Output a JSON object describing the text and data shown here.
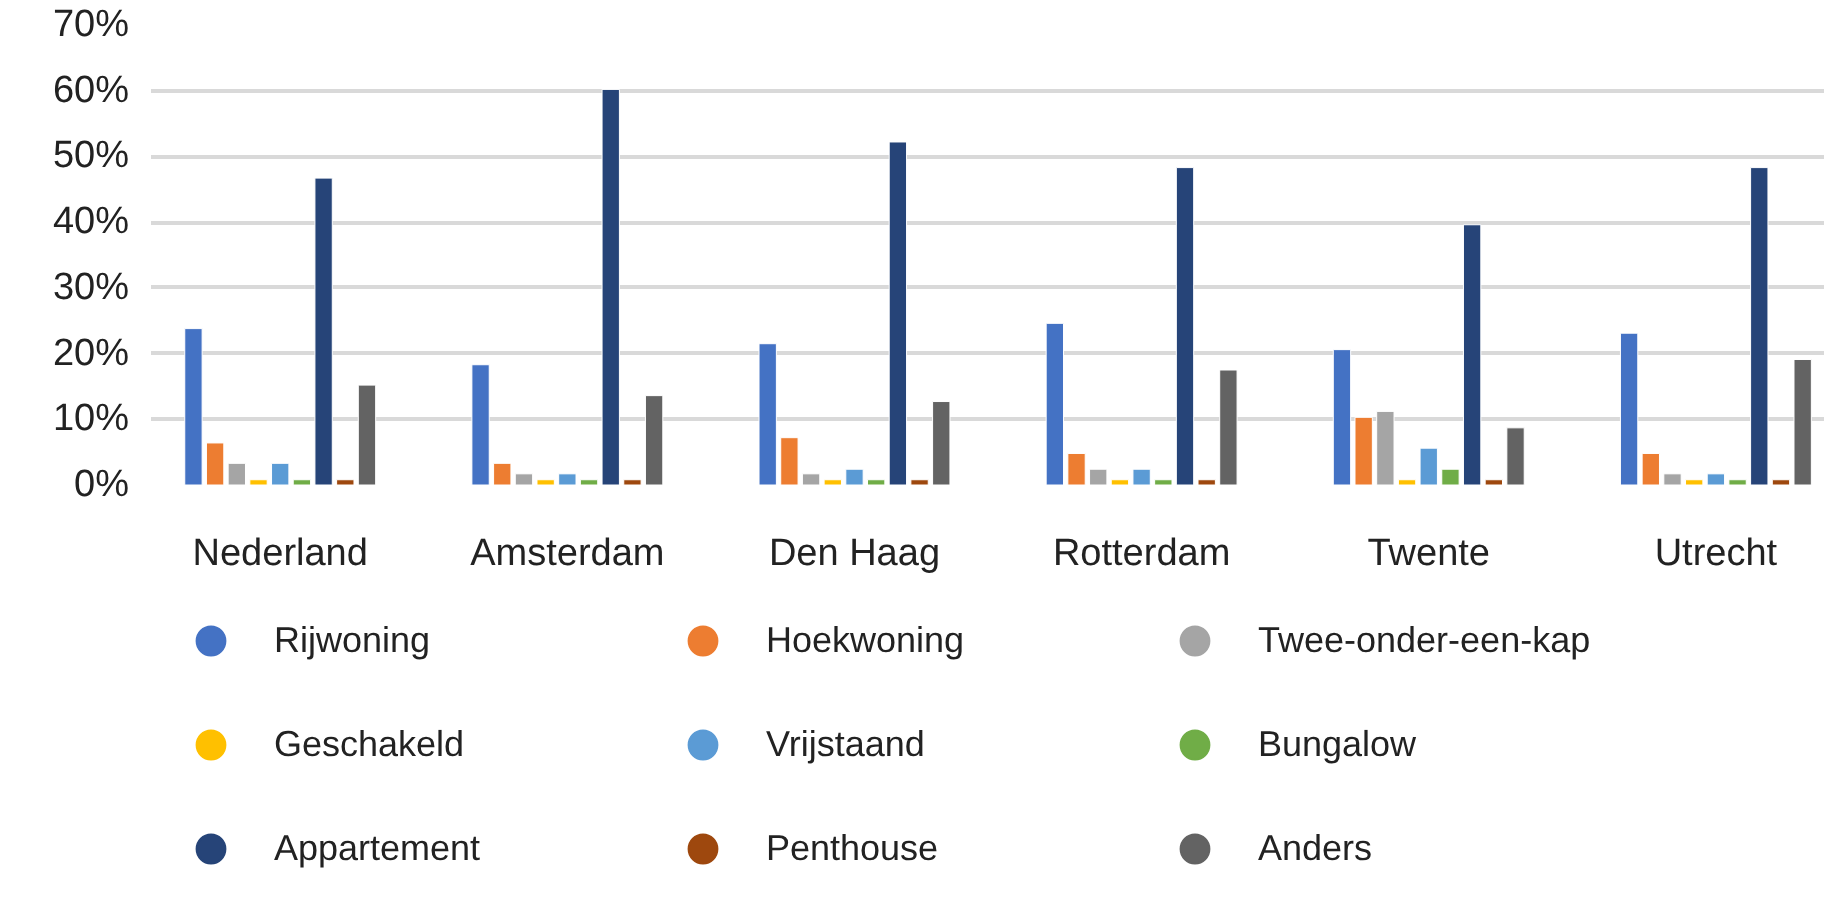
{
  "chart_data": {
    "type": "bar",
    "categories": [
      "Nederland",
      "Amsterdam",
      "Den Haag",
      "Rotterdam",
      "Twente",
      "Utrecht"
    ],
    "series": [
      {
        "name": "Rijwoning",
        "color": "#4472c4",
        "values": [
          23.8,
          18.3,
          21.5,
          24.6,
          20.6,
          23.1
        ]
      },
      {
        "name": "Hoekwoning",
        "color": "#ed7d31",
        "values": [
          6.4,
          3.3,
          7.2,
          4.8,
          10.3,
          4.8
        ]
      },
      {
        "name": "Twee-onder-een-kap",
        "color": "#a5a5a5",
        "values": [
          3.3,
          1.7,
          1.7,
          2.4,
          11.2,
          1.7
        ]
      },
      {
        "name": "Geschakeld",
        "color": "#ffc000",
        "values": [
          0.8,
          0.8,
          0.8,
          0.8,
          0.8,
          0.8
        ]
      },
      {
        "name": "Vrijstaand",
        "color": "#5b9bd5",
        "values": [
          3.3,
          1.7,
          2.4,
          2.4,
          5.6,
          1.7
        ]
      },
      {
        "name": "Bungalow",
        "color": "#70ad47",
        "values": [
          0.8,
          0.8,
          0.8,
          0.8,
          2.4,
          0.8
        ]
      },
      {
        "name": "Appartement",
        "color": "#264478",
        "values": [
          46.7,
          60.2,
          52.2,
          48.3,
          39.6,
          48.3
        ]
      },
      {
        "name": "Penthouse",
        "color": "#9e480e",
        "values": [
          0.8,
          0.8,
          0.8,
          0.8,
          0.8,
          0.8
        ]
      },
      {
        "name": "Anders",
        "color": "#636363",
        "values": [
          15.2,
          13.6,
          12.7,
          17.5,
          8.7,
          19.1
        ]
      }
    ],
    "ylim": [
      0,
      70
    ],
    "yticks": [
      {
        "value": 0,
        "label": "0%"
      },
      {
        "value": 10,
        "label": "10%"
      },
      {
        "value": 20,
        "label": "20%"
      },
      {
        "value": 30,
        "label": "30%"
      },
      {
        "value": 40,
        "label": "40%"
      },
      {
        "value": 50,
        "label": "50%"
      },
      {
        "value": 60,
        "label": "60%"
      },
      {
        "value": 70,
        "label": "70%"
      }
    ],
    "grid": "y",
    "legend": "bottom"
  }
}
